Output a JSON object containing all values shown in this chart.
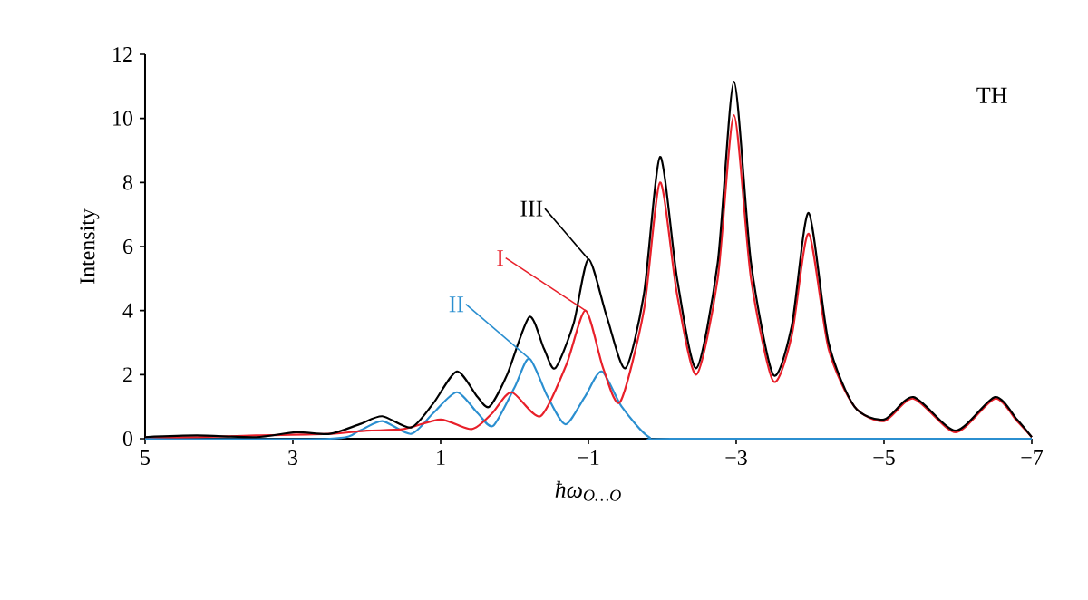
{
  "chart_data": {
    "type": "line",
    "xlabel": "ħω$_{O…O}$",
    "ylabel": "Intensity",
    "annotations": [
      "TH"
    ],
    "xlim": [
      5,
      -7
    ],
    "ylim": [
      0,
      12
    ],
    "xticks": [
      5,
      3,
      1,
      {
        "value": -1,
        "label": "−1"
      },
      {
        "value": -3,
        "label": "−3"
      },
      {
        "value": -5,
        "label": "−5"
      },
      {
        "value": -7,
        "label": "−7"
      }
    ],
    "yticks": [
      0,
      2,
      4,
      6,
      8,
      10,
      12
    ],
    "series": [
      {
        "name": "II",
        "color": "#2b8fd0",
        "x": [
          5,
          2.5,
          2.1,
          1.79,
          1.4,
          1.1,
          0.78,
          0.5,
          0.29,
          0.0,
          -0.2,
          -0.45,
          -0.69,
          -0.95,
          -1.18,
          -1.45,
          -1.82,
          -2.2,
          -7
        ],
        "values": [
          0,
          0,
          0.25,
          0.55,
          0.15,
          0.8,
          1.45,
          0.8,
          0.4,
          1.6,
          2.5,
          1.3,
          0.45,
          1.3,
          2.1,
          1.0,
          0.05,
          0,
          0
        ]
      },
      {
        "name": "I",
        "color": "#e8202a",
        "x": [
          5,
          4.3,
          3.5,
          2.5,
          2.0,
          1.5,
          1.0,
          0.58,
          0.3,
          0.04,
          -0.35,
          -0.7,
          -0.96,
          -1.2,
          -1.43,
          -1.75,
          -1.97,
          -2.2,
          -2.46,
          -2.75,
          -2.97,
          -3.2,
          -3.5,
          -3.75,
          -3.98,
          -4.25,
          -4.6,
          -5.0,
          -5.4,
          -5.97,
          -6.5,
          -6.8,
          -7
        ],
        "values": [
          0.05,
          0.05,
          0.1,
          0.15,
          0.25,
          0.3,
          0.6,
          0.3,
          0.8,
          1.45,
          0.7,
          2.3,
          4.0,
          2.2,
          1.15,
          4.0,
          8.0,
          4.5,
          2.0,
          5.0,
          10.1,
          5.0,
          1.8,
          3.2,
          6.4,
          2.8,
          1.0,
          0.55,
          1.25,
          0.2,
          1.25,
          0.55,
          0.05
        ]
      },
      {
        "name": "III",
        "color": "#000000",
        "x": [
          5,
          4.3,
          3.5,
          2.96,
          2.5,
          2.1,
          1.79,
          1.4,
          1.1,
          0.78,
          0.5,
          0.34,
          0.1,
          -0.2,
          -0.4,
          -0.55,
          -0.8,
          -1.0,
          -1.25,
          -1.5,
          -1.75,
          -1.97,
          -2.2,
          -2.46,
          -2.75,
          -2.97,
          -3.2,
          -3.5,
          -3.75,
          -3.98,
          -4.25,
          -4.6,
          -5.0,
          -5.4,
          -5.97,
          -6.5,
          -6.8,
          -7
        ],
        "values": [
          0.05,
          0.1,
          0.05,
          0.2,
          0.15,
          0.45,
          0.7,
          0.35,
          1.1,
          2.1,
          1.3,
          1.0,
          2.0,
          3.8,
          2.8,
          2.2,
          3.6,
          5.6,
          3.8,
          2.2,
          4.5,
          8.8,
          5.0,
          2.2,
          5.5,
          11.15,
          5.5,
          2.0,
          3.5,
          7.05,
          3.0,
          1.0,
          0.6,
          1.3,
          0.25,
          1.3,
          0.6,
          0.05
        ]
      }
    ]
  }
}
